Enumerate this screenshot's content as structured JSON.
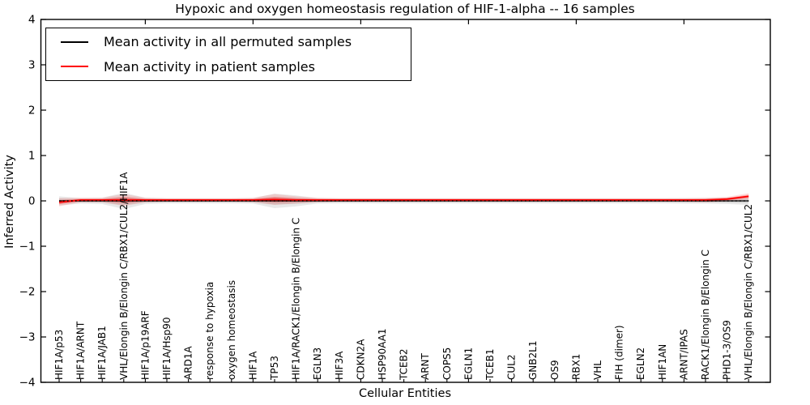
{
  "title": "Hypoxic and oxygen homeostasis regulation of HIF-1-alpha -- 16 samples",
  "legend": {
    "items": [
      {
        "label": "Mean activity in all permuted samples",
        "color": "#000000"
      },
      {
        "label": "Mean activity in patient samples",
        "color": "#ff0000"
      }
    ]
  },
  "chart_data": {
    "type": "line",
    "title": "Hypoxic and oxygen homeostasis regulation of HIF-1-alpha -- 16 samples",
    "xlabel": "Cellular Entities",
    "ylabel": "Inferred Activity",
    "ylim": [
      -4,
      4
    ],
    "yticks": [
      4,
      3,
      2,
      1,
      0,
      -1,
      -2,
      -3,
      -4
    ],
    "top_ticks_positions": [
      5,
      10,
      15,
      20,
      25,
      30
    ],
    "grid": false,
    "legend_position": "upper left",
    "zero_line": {
      "value": 0,
      "style": "dotted",
      "color": "#000000"
    },
    "categories": [
      "HIF1A/p53",
      "HIF1A/ARNT",
      "HIF1A/JAB1",
      "VHL/Elongin B/Elongin C/RBX1/CUL2/HIF1A",
      "HIF1A/p19ARF",
      "HIF1A/Hsp90",
      "ARD1A",
      "response to hypoxia",
      "oxygen homeostasis",
      "HIF1A",
      "TP53",
      "HIF1A/RACK1/Elongin B/Elongin C",
      "EGLN3",
      "HIF3A",
      "CDKN2A",
      "HSP90AA1",
      "TCEB2",
      "ARNT",
      "COPS5",
      "EGLN1",
      "TCEB1",
      "CUL2",
      "GNB2L1",
      "OS9",
      "RBX1",
      "VHL",
      "FIH (dimer)",
      "EGLN2",
      "HIF1AN",
      "ARNT/IPAS",
      "RACK1/Elongin B/Elongin C",
      "PHD1-3/OS9",
      "VHL/Elongin B/Elongin C/RBX1/CUL2"
    ],
    "series": [
      {
        "name": "Mean activity in all permuted samples",
        "color": "#000000",
        "mean": [
          0,
          0,
          0,
          0,
          0,
          0,
          0,
          0,
          0,
          0,
          0,
          0,
          0,
          0,
          0,
          0,
          0,
          0,
          0,
          0,
          0,
          0,
          0,
          0,
          0,
          0,
          0,
          0,
          0,
          0,
          0,
          0,
          0
        ],
        "range_half_width": [
          0.1,
          0.06,
          0.07,
          0.18,
          0.07,
          0.055,
          0.055,
          0.055,
          0.055,
          0.06,
          0.16,
          0.12,
          0.06,
          0.055,
          0.055,
          0.055,
          0.055,
          0.055,
          0.055,
          0.055,
          0.055,
          0.055,
          0.055,
          0.055,
          0.055,
          0.055,
          0.055,
          0.055,
          0.055,
          0.06,
          0.06,
          0.07,
          0.09
        ]
      },
      {
        "name": "Mean activity in patient samples",
        "color": "#ff0000",
        "mean": [
          -0.03,
          0.02,
          0.02,
          0.02,
          0.02,
          0.02,
          0.02,
          0.02,
          0.02,
          0.02,
          0.03,
          0.02,
          0.02,
          0.02,
          0.02,
          0.02,
          0.02,
          0.02,
          0.02,
          0.02,
          0.02,
          0.02,
          0.02,
          0.02,
          0.02,
          0.02,
          0.02,
          0.02,
          0.02,
          0.02,
          0.02,
          0.04,
          0.1
        ],
        "range_half_width": [
          0.09,
          0.05,
          0.05,
          0.13,
          0.05,
          0.04,
          0.04,
          0.04,
          0.04,
          0.05,
          0.12,
          0.08,
          0.05,
          0.04,
          0.04,
          0.04,
          0.04,
          0.04,
          0.04,
          0.04,
          0.04,
          0.04,
          0.04,
          0.04,
          0.04,
          0.04,
          0.04,
          0.04,
          0.04,
          0.04,
          0.05,
          0.05,
          0.07
        ]
      }
    ]
  }
}
